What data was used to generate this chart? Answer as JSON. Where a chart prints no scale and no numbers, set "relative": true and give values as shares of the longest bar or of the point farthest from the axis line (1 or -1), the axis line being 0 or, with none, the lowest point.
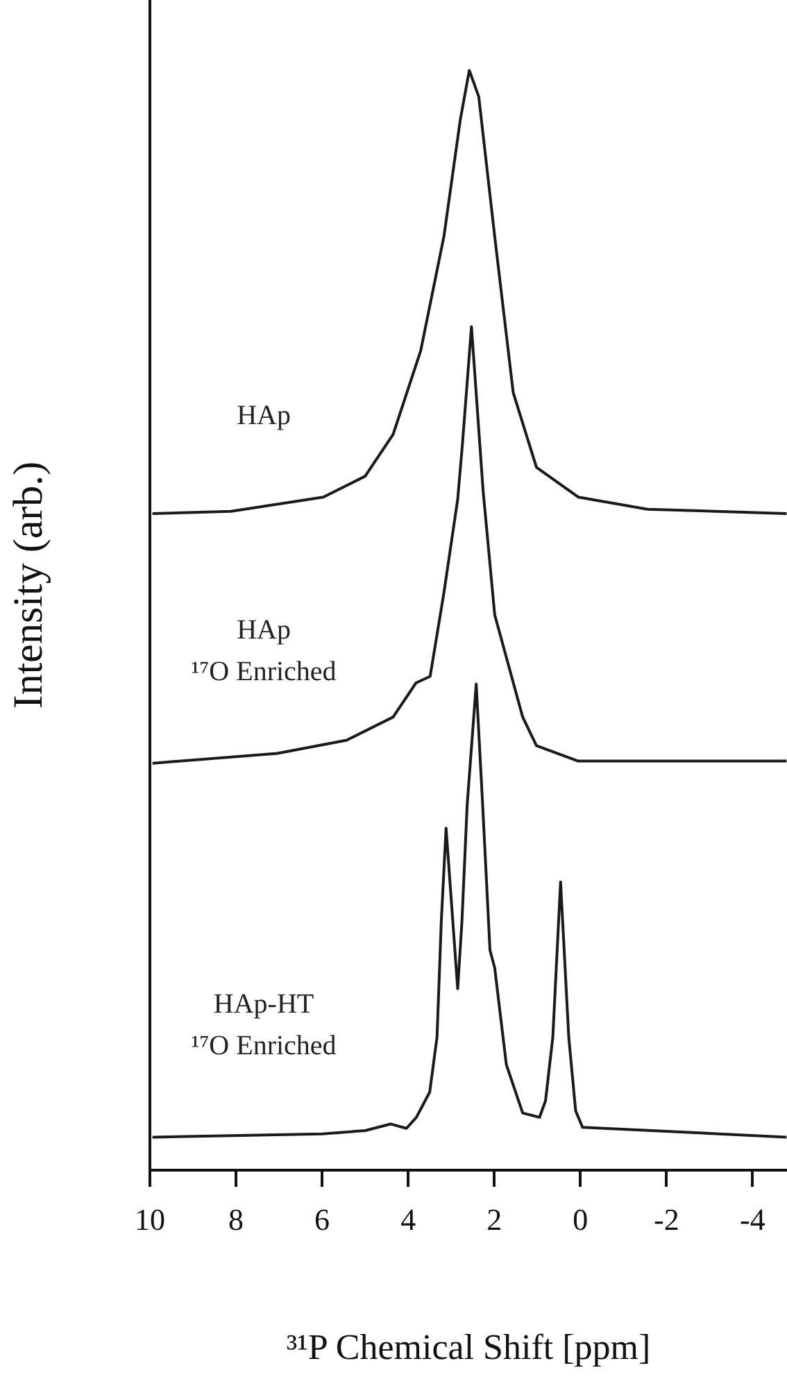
{
  "chart_data": {
    "type": "line",
    "relative": true,
    "xlabel": "³¹P Chemical Shift [ppm]",
    "ylabel": "Intensity (arb.)",
    "xlim": [
      10,
      -4.8
    ],
    "xticks": [
      10,
      8,
      6,
      4,
      2,
      0,
      -2,
      -4
    ],
    "grid": false,
    "legend": false,
    "marker": "none",
    "line_style": "solid",
    "series": [
      {
        "name": "HAp",
        "color": "#1a1a1a",
        "x": [
          9.94,
          8.12,
          5.97,
          5.0,
          4.35,
          3.71,
          3.17,
          2.79,
          2.58,
          2.36,
          1.99,
          1.56,
          1.02,
          0.05,
          -1.56,
          -4.79
        ],
        "values": [
          0.597,
          0.599,
          0.612,
          0.631,
          0.669,
          0.745,
          0.849,
          0.955,
          1.0,
          0.976,
          0.849,
          0.707,
          0.639,
          0.612,
          0.601,
          0.597
        ]
      },
      {
        "name": "HAp\n¹⁷O Enriched",
        "color": "#1a1a1a",
        "x": [
          9.94,
          7.04,
          5.43,
          4.35,
          3.82,
          3.49,
          3.17,
          2.85,
          2.74,
          2.53,
          2.26,
          1.99,
          1.34,
          1.02,
          0.05,
          -4.79
        ],
        "values": [
          0.37,
          0.379,
          0.391,
          0.412,
          0.443,
          0.449,
          0.525,
          0.61,
          0.66,
          0.767,
          0.618,
          0.505,
          0.412,
          0.386,
          0.372,
          0.372
        ]
      },
      {
        "name": "HAp-HT\n¹⁷O Enriched",
        "color": "#1a1a1a",
        "x": [
          9.94,
          6.0,
          5.0,
          4.41,
          4.04,
          3.81,
          3.5,
          3.33,
          3.23,
          3.12,
          2.85,
          2.75,
          2.63,
          2.42,
          2.27,
          2.1,
          1.99,
          1.72,
          1.34,
          0.95,
          0.81,
          0.64,
          0.46,
          0.27,
          0.11,
          -0.05,
          -4.79
        ],
        "values": [
          0.03,
          0.033,
          0.036,
          0.042,
          0.038,
          0.048,
          0.071,
          0.121,
          0.227,
          0.311,
          0.165,
          0.227,
          0.332,
          0.442,
          0.332,
          0.2,
          0.184,
          0.096,
          0.052,
          0.048,
          0.063,
          0.121,
          0.262,
          0.121,
          0.054,
          0.039,
          0.03
        ]
      }
    ]
  }
}
